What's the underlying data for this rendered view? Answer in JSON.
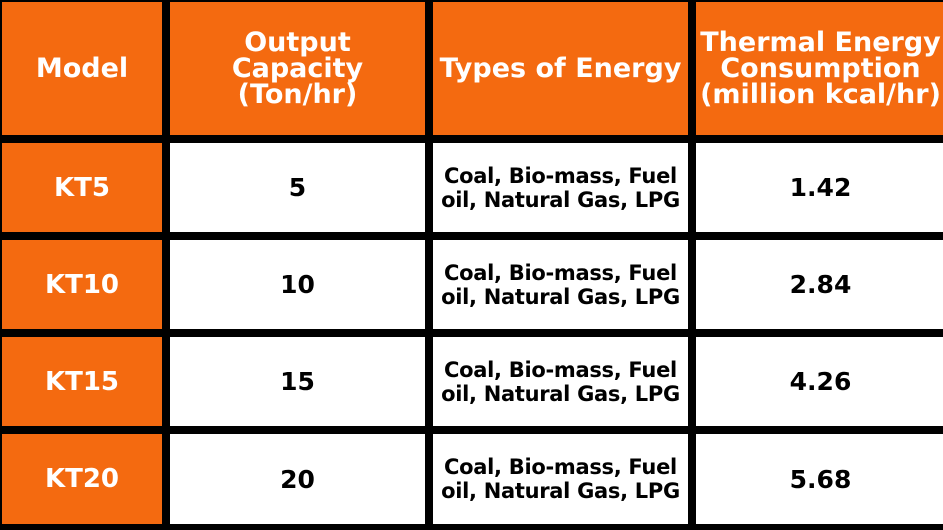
{
  "table": {
    "headers": {
      "model": "Model",
      "output_capacity": [
        "Output Capacity",
        "(Ton/hr)"
      ],
      "types_of_energy": "Types of Energy",
      "thermal_energy": [
        "Thermal Energy",
        "Consumption",
        "(million kcal/hr)"
      ]
    },
    "rows": [
      {
        "model": "KT5",
        "output_capacity": "5",
        "types_of_energy": [
          "Coal, Bio-mass, Fuel",
          "oil, Natural Gas, LPG"
        ],
        "thermal_energy": "1.42"
      },
      {
        "model": "KT10",
        "output_capacity": "10",
        "types_of_energy": [
          "Coal, Bio-mass, Fuel",
          "oil, Natural Gas, LPG"
        ],
        "thermal_energy": "2.84"
      },
      {
        "model": "KT15",
        "output_capacity": "15",
        "types_of_energy": [
          "Coal, Bio-mass, Fuel",
          "oil, Natural Gas, LPG"
        ],
        "thermal_energy": "4.26"
      },
      {
        "model": "KT20",
        "output_capacity": "20",
        "types_of_energy": [
          "Coal, Bio-mass, Fuel",
          "oil, Natural Gas, LPG"
        ],
        "thermal_energy": "5.68"
      }
    ],
    "colors": {
      "header_bg": "#f46a10",
      "header_text": "#ffffff",
      "body_bg": "#ffffff",
      "body_text": "#000000",
      "grid_lines": "#000000"
    }
  }
}
